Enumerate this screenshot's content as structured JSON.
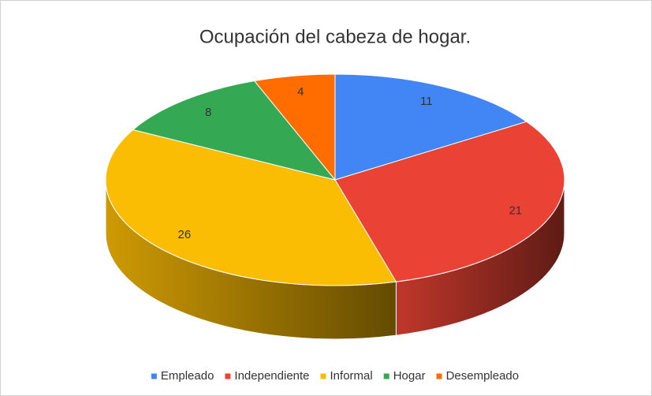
{
  "chart_data": {
    "type": "pie3d",
    "title": "Ocupación del cabeza de hogar.",
    "categories": [
      "Empleado",
      "Independiente",
      "Informal",
      "Hogar",
      "Desempleado"
    ],
    "values": [
      11,
      21,
      26,
      8,
      4
    ],
    "colors": [
      "#4285f4",
      "#ea4335",
      "#fbbc04",
      "#34a853",
      "#ff6d01"
    ],
    "legend": "bottom"
  }
}
